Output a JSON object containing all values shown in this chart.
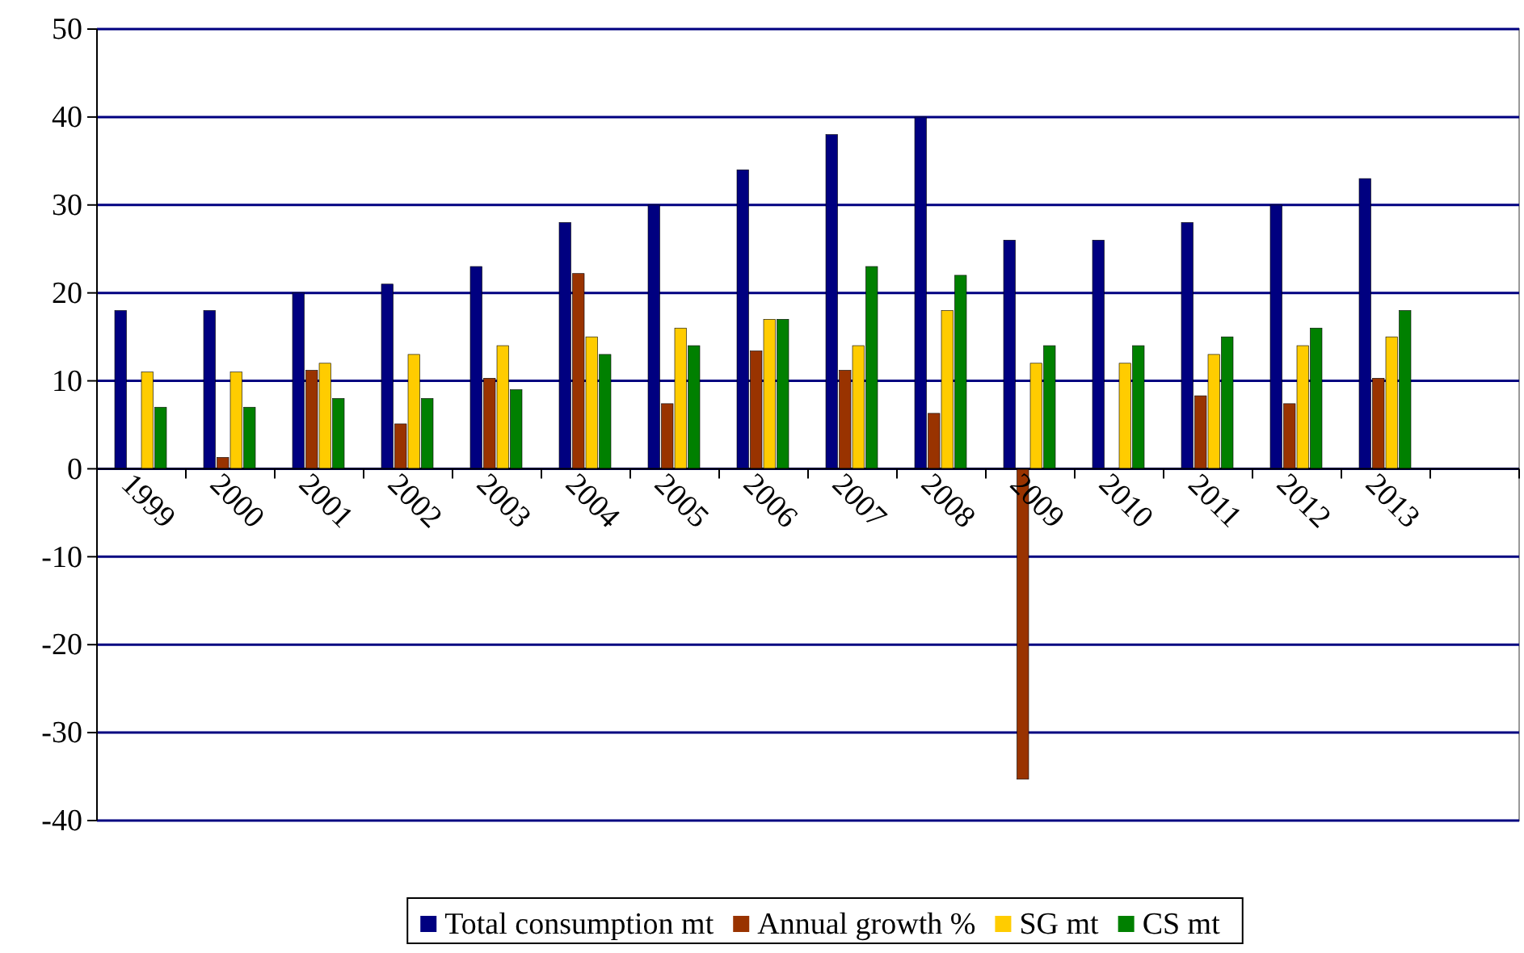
{
  "chart_data": {
    "type": "bar",
    "categories": [
      "1999",
      "2000",
      "2001",
      "2002",
      "2003",
      "2004",
      "2005",
      "2006",
      "2007",
      "2008",
      "2009",
      "2010",
      "2011",
      "2012",
      "2013",
      null
    ],
    "series": [
      {
        "name": "Total consumption mt",
        "color": "#000080",
        "values": [
          18,
          18,
          20,
          21,
          23,
          28,
          30,
          34,
          38,
          40,
          26,
          26,
          28,
          30,
          33,
          null
        ]
      },
      {
        "name": "Annual growth %",
        "color": "#993300",
        "values": [
          null,
          1.3,
          11.2,
          5.1,
          10.3,
          22.2,
          7.4,
          13.4,
          11.2,
          6.3,
          -35.3,
          null,
          8.3,
          7.4,
          10.3,
          null
        ]
      },
      {
        "name": "SG mt",
        "color": "#ffcc00",
        "values": [
          11,
          11,
          12,
          13,
          14,
          15,
          16,
          17,
          14,
          18,
          12,
          12,
          13,
          14,
          15,
          null
        ]
      },
      {
        "name": "CS mt",
        "color": "#008000",
        "values": [
          7,
          7,
          8,
          8,
          9,
          13,
          14,
          17,
          23,
          22,
          14,
          14,
          15,
          16,
          18,
          null
        ]
      }
    ],
    "ylim": [
      -40,
      50
    ],
    "yticks": [
      -40,
      -30,
      -20,
      -10,
      0,
      10,
      20,
      30,
      40,
      50
    ],
    "grid": "y",
    "legend": "bottom"
  }
}
